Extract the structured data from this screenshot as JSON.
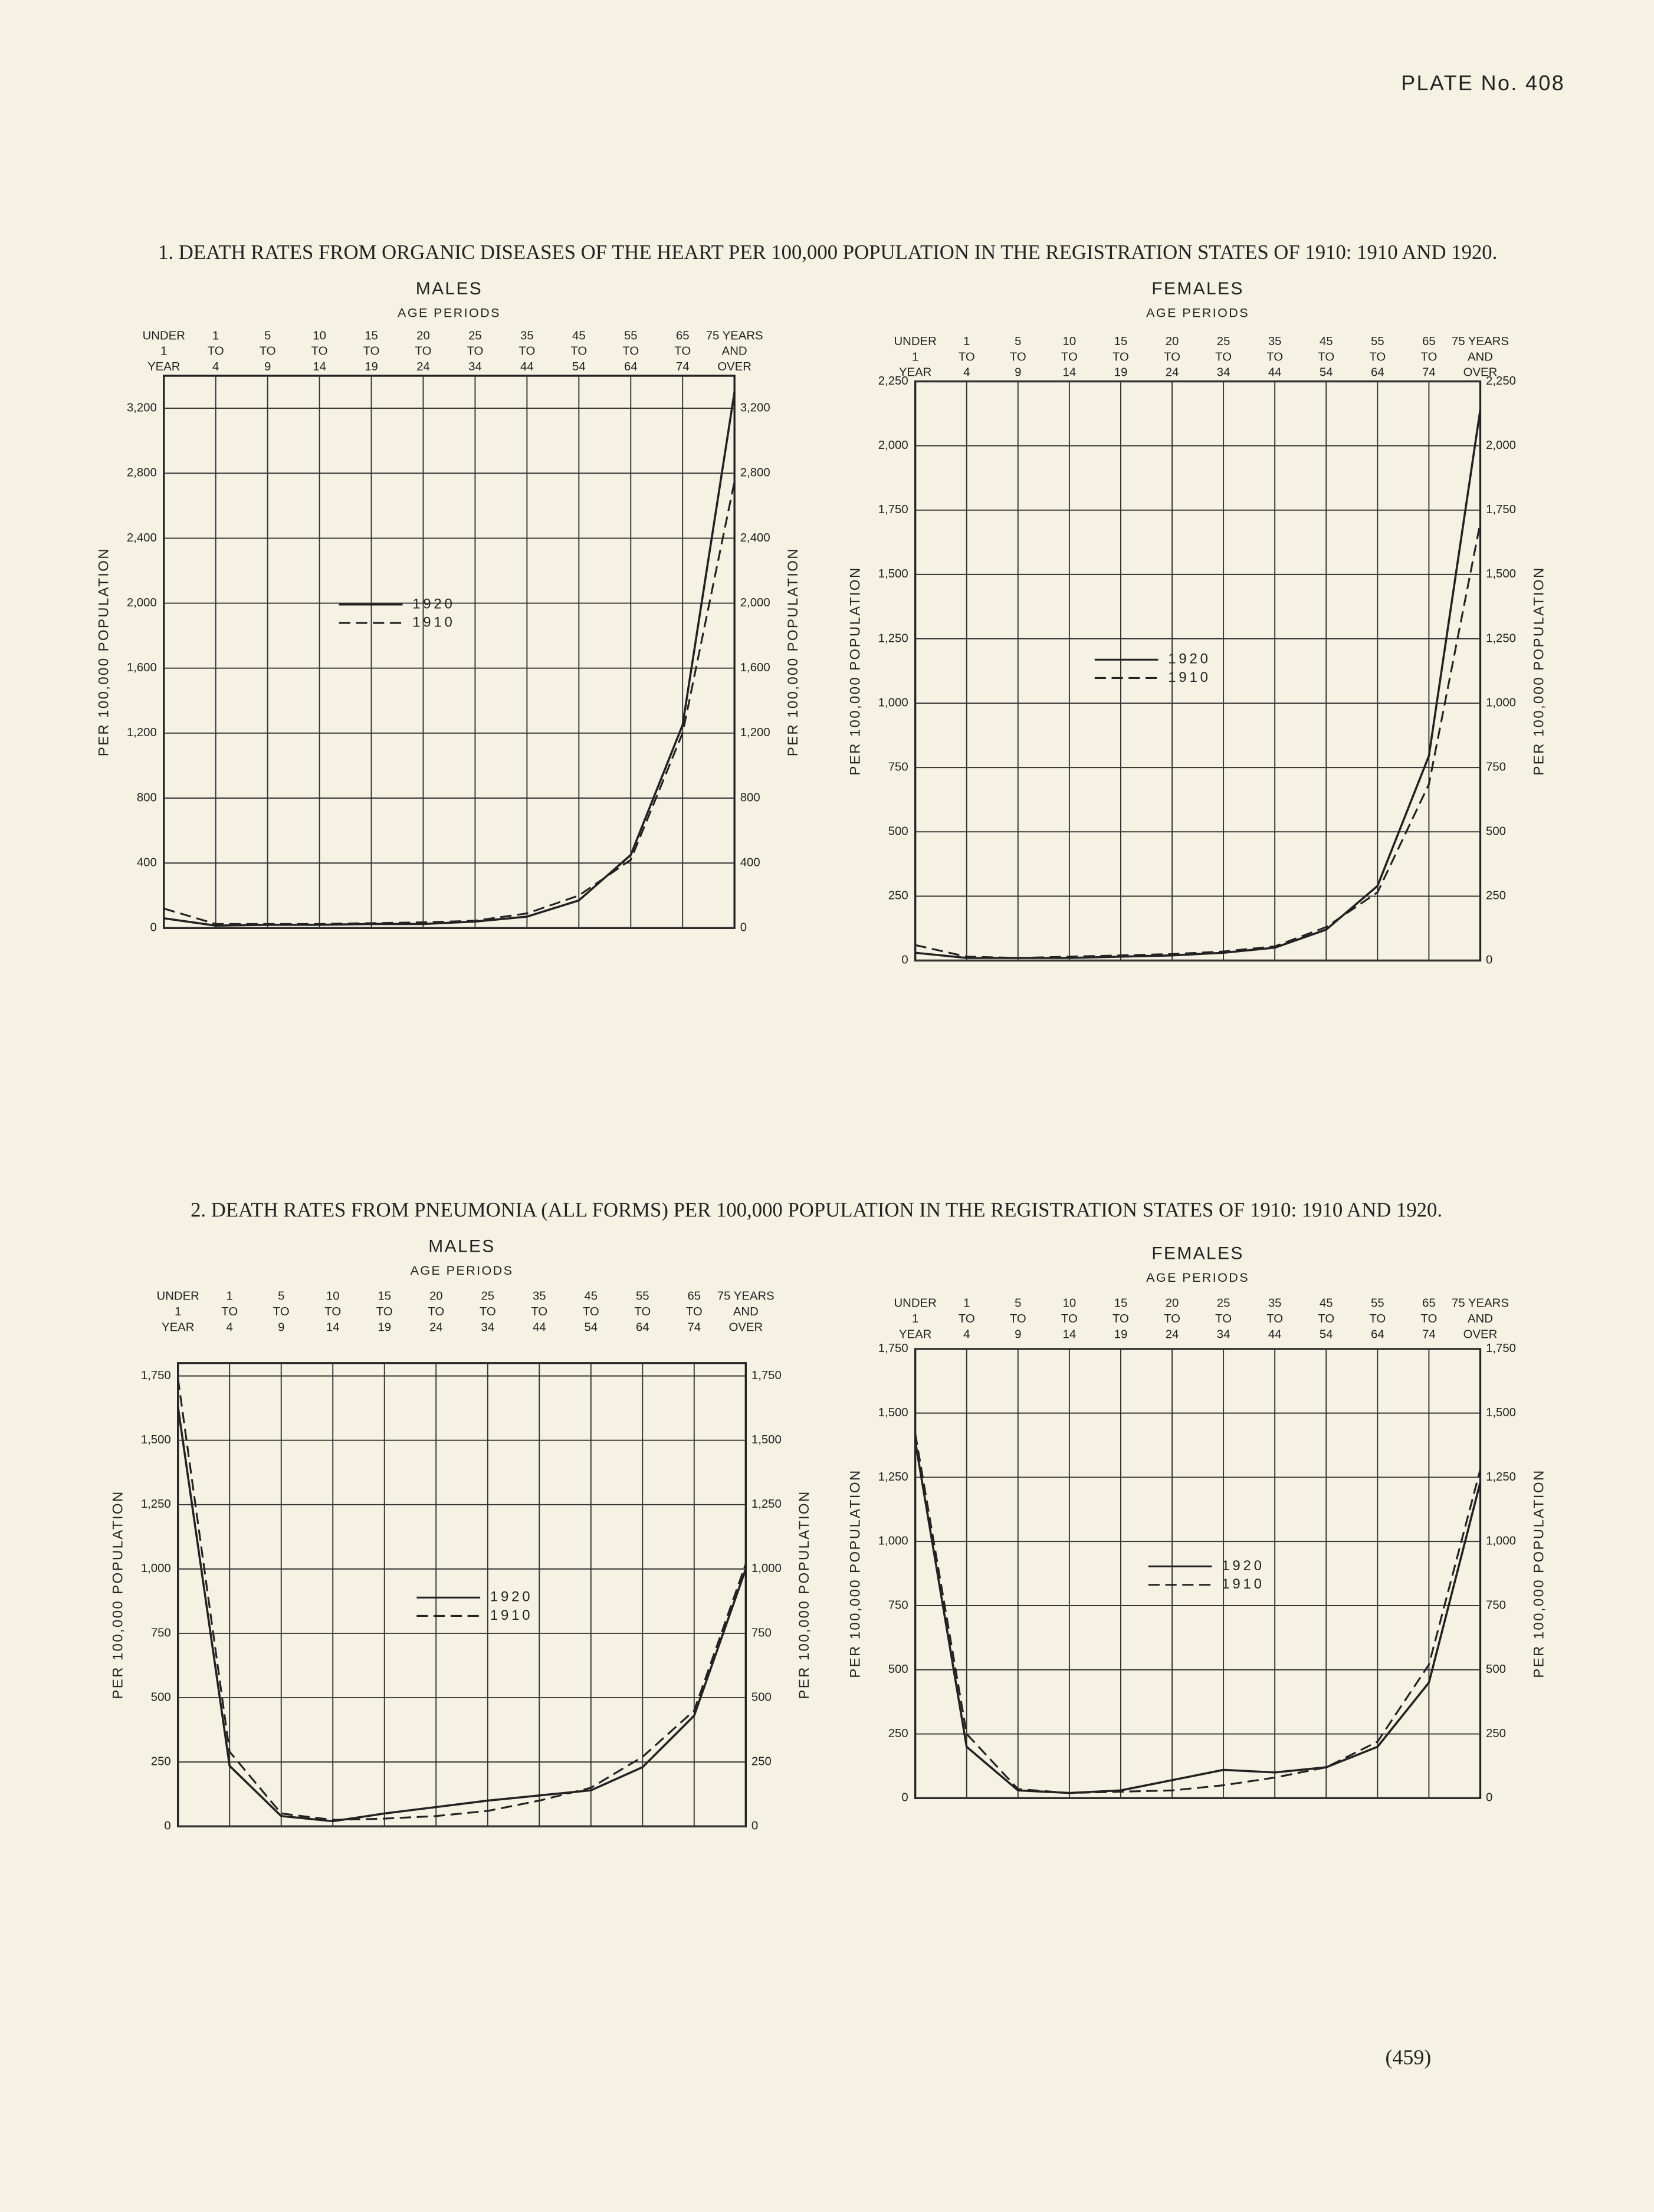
{
  "plate": "PLATE No. 408",
  "page_number": "(459)",
  "sections": [
    {
      "title": "1. DEATH RATES FROM ORGANIC DISEASES OF THE HEART PER 100,000 POPULATION IN THE REGISTRATION STATES OF 1910: 1910 AND 1920."
    },
    {
      "title": "2. DEATH RATES FROM PNEUMONIA (ALL FORMS) PER 100,000 POPULATION IN THE REGISTRATION STATES OF 1910: 1910 AND 1920."
    }
  ],
  "chart_data": [
    {
      "type": "line",
      "title": "MALES",
      "subtitle": "AGE PERIODS",
      "ylabel": "PER 100,000 POPULATION",
      "categories": [
        [
          "UNDER",
          "1",
          "YEAR"
        ],
        [
          "1",
          "TO",
          "4"
        ],
        [
          "5",
          "TO",
          "9"
        ],
        [
          "10",
          "TO",
          "14"
        ],
        [
          "15",
          "TO",
          "19"
        ],
        [
          "20",
          "TO",
          "24"
        ],
        [
          "25",
          "TO",
          "34"
        ],
        [
          "35",
          "TO",
          "44"
        ],
        [
          "45",
          "TO",
          "54"
        ],
        [
          "55",
          "TO",
          "64"
        ],
        [
          "65",
          "TO",
          "74"
        ],
        [
          "75 YEARS",
          "AND",
          "OVER"
        ]
      ],
      "series": [
        {
          "name": "1920",
          "color": "#222222",
          "dashed": false,
          "values": [
            60,
            15,
            20,
            20,
            25,
            25,
            40,
            70,
            170,
            450,
            1250,
            3300
          ]
        },
        {
          "name": "1910",
          "color": "#222222",
          "dashed": true,
          "values": [
            120,
            25,
            25,
            25,
            30,
            35,
            45,
            90,
            200,
            420,
            1200,
            2750
          ]
        }
      ],
      "ylim": [
        0,
        3400
      ],
      "yticks": [
        0,
        400,
        800,
        {
          "value": 1200,
          "label": "1,200"
        },
        {
          "value": 1600,
          "label": "1,600"
        },
        {
          "value": 2000,
          "label": "2,000"
        },
        {
          "value": 2400,
          "label": "2,400"
        },
        {
          "value": 2800,
          "label": "2,800"
        },
        {
          "value": 3200,
          "label": "3,200"
        }
      ],
      "grid": true
    },
    {
      "type": "line",
      "title": "FEMALES",
      "subtitle": "AGE PERIODS",
      "ylabel": "PER 100,000 POPULATION",
      "categories": [
        [
          "UNDER",
          "1",
          "YEAR"
        ],
        [
          "1",
          "TO",
          "4"
        ],
        [
          "5",
          "TO",
          "9"
        ],
        [
          "10",
          "TO",
          "14"
        ],
        [
          "15",
          "TO",
          "19"
        ],
        [
          "20",
          "TO",
          "24"
        ],
        [
          "25",
          "TO",
          "34"
        ],
        [
          "35",
          "TO",
          "44"
        ],
        [
          "45",
          "TO",
          "54"
        ],
        [
          "55",
          "TO",
          "64"
        ],
        [
          "65",
          "TO",
          "74"
        ],
        [
          "75 YEARS",
          "AND",
          "OVER"
        ]
      ],
      "series": [
        {
          "name": "1920",
          "color": "#222222",
          "dashed": false,
          "values": [
            30,
            10,
            10,
            10,
            15,
            20,
            30,
            50,
            120,
            290,
            795,
            2140
          ]
        },
        {
          "name": "1910",
          "color": "#222222",
          "dashed": true,
          "values": [
            60,
            15,
            10,
            15,
            20,
            25,
            35,
            55,
            130,
            265,
            685,
            1700
          ]
        }
      ],
      "ylim": [
        0,
        2250
      ],
      "yticks": [
        0,
        250,
        500,
        750,
        {
          "value": 1000,
          "label": "1,000"
        },
        {
          "value": 1250,
          "label": "1,250"
        },
        {
          "value": 1500,
          "label": "1,500"
        },
        {
          "value": 1750,
          "label": "1,750"
        },
        {
          "value": 2000,
          "label": "2,000"
        },
        {
          "value": 2250,
          "label": "2,250"
        }
      ],
      "grid": true
    },
    {
      "type": "line",
      "title": "MALES",
      "subtitle": "AGE PERIODS",
      "ylabel": "PER 100,000 POPULATION",
      "categories": [
        [
          "UNDER",
          "1",
          "YEAR"
        ],
        [
          "1",
          "TO",
          "4"
        ],
        [
          "5",
          "TO",
          "9"
        ],
        [
          "10",
          "TO",
          "14"
        ],
        [
          "15",
          "TO",
          "19"
        ],
        [
          "20",
          "TO",
          "24"
        ],
        [
          "25",
          "TO",
          "34"
        ],
        [
          "35",
          "TO",
          "44"
        ],
        [
          "45",
          "TO",
          "54"
        ],
        [
          "55",
          "TO",
          "64"
        ],
        [
          "65",
          "TO",
          "74"
        ],
        [
          "75 YEARS",
          "AND",
          "OVER"
        ]
      ],
      "series": [
        {
          "name": "1920",
          "color": "#222222",
          "dashed": false,
          "values": [
            1630,
            235,
            40,
            20,
            50,
            75,
            100,
            120,
            140,
            230,
            430,
            1000
          ]
        },
        {
          "name": "1910",
          "color": "#222222",
          "dashed": true,
          "values": [
            1740,
            290,
            50,
            25,
            30,
            40,
            60,
            100,
            150,
            270,
            450,
            1020
          ]
        }
      ],
      "ylim": [
        0,
        1800
      ],
      "yticks": [
        0,
        250,
        500,
        750,
        {
          "value": 1000,
          "label": "1,000"
        },
        {
          "value": 1250,
          "label": "1,250"
        },
        {
          "value": 1500,
          "label": "1,500"
        },
        {
          "value": 1750,
          "label": "1,750"
        }
      ],
      "grid": true
    },
    {
      "type": "line",
      "title": "FEMALES",
      "subtitle": "AGE PERIODS",
      "ylabel": "PER 100,000 POPULATION",
      "categories": [
        [
          "UNDER",
          "1",
          "YEAR"
        ],
        [
          "1",
          "TO",
          "4"
        ],
        [
          "5",
          "TO",
          "9"
        ],
        [
          "10",
          "TO",
          "14"
        ],
        [
          "15",
          "TO",
          "19"
        ],
        [
          "20",
          "TO",
          "24"
        ],
        [
          "25",
          "TO",
          "34"
        ],
        [
          "35",
          "TO",
          "44"
        ],
        [
          "45",
          "TO",
          "54"
        ],
        [
          "55",
          "TO",
          "64"
        ],
        [
          "65",
          "TO",
          "74"
        ],
        [
          "75 YEARS",
          "AND",
          "OVER"
        ]
      ],
      "series": [
        {
          "name": "1920",
          "color": "#222222",
          "dashed": false,
          "values": [
            1390,
            200,
            30,
            20,
            30,
            70,
            110,
            100,
            120,
            200,
            450,
            1230
          ]
        },
        {
          "name": "1910",
          "color": "#222222",
          "dashed": true,
          "values": [
            1420,
            250,
            35,
            20,
            25,
            30,
            50,
            80,
            120,
            220,
            520,
            1280
          ]
        }
      ],
      "ylim": [
        0,
        1750
      ],
      "yticks": [
        0,
        250,
        500,
        750,
        {
          "value": 1000,
          "label": "1,000"
        },
        {
          "value": 1250,
          "label": "1,250"
        },
        {
          "value": 1500,
          "label": "1,500"
        },
        {
          "value": 1750,
          "label": "1,750"
        }
      ],
      "grid": true
    }
  ]
}
